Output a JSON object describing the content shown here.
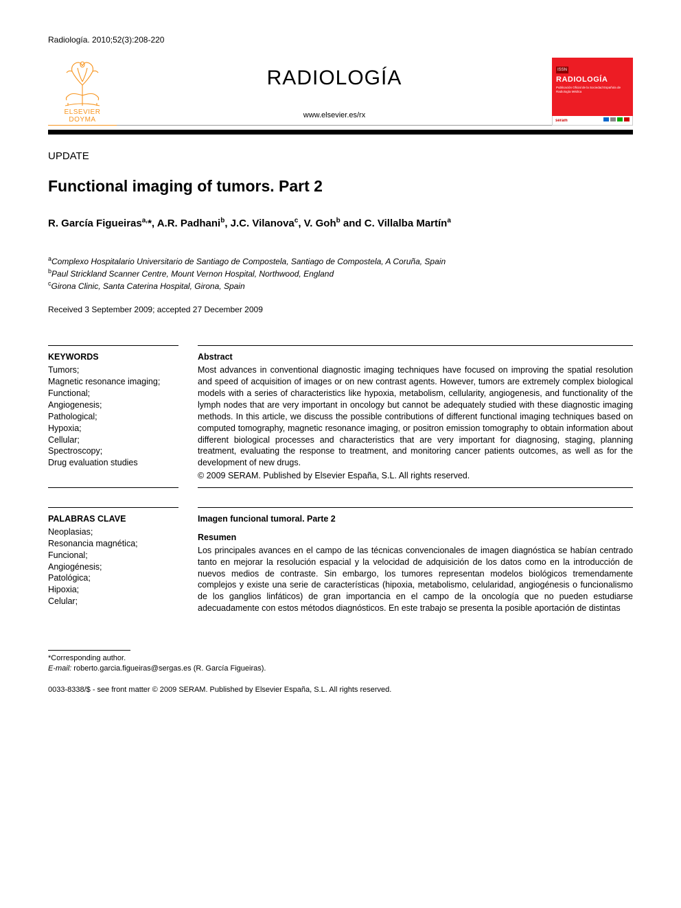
{
  "citation": "Radiología. 2010;52(3):208-220",
  "publisher_logo": {
    "line1": "ELSEVIER",
    "line2": "DOYMA",
    "color": "#f7941e"
  },
  "journal": {
    "name": "RADIOLOGÍA",
    "url": "www.elsevier.es/rx"
  },
  "cover": {
    "badge": "ISSN",
    "title": "RADIOLOGÍA",
    "subtitle": "Publicación Oficial de la Sociedad Española de Radiología Médica",
    "seram": "seram",
    "bg_color": "#ed1c24"
  },
  "section_label": "UPDATE",
  "article_title": "Functional imaging of tumors. Part 2",
  "authors_html": "R. García Figueiras<sup>a,</sup>*, A.R. Padhani<sup>b</sup>, J.C. Vilanova<sup>c</sup>, V. Goh<sup>b</sup> and C. Villalba Martín<sup>a</sup>",
  "affiliations": [
    {
      "sup": "a",
      "text": "Complexo Hospitalario Universitario de Santiago de Compostela, Santiago de Compostela, A Coruña, Spain"
    },
    {
      "sup": "b",
      "text": "Paul Strickland Scanner Centre, Mount Vernon Hospital, Northwood, England"
    },
    {
      "sup": "c",
      "text": "Girona Clinic, Santa Caterina Hospital, Girona, Spain"
    }
  ],
  "received": "Received 3 September 2009; accepted 27 December 2009",
  "keywords_en": {
    "heading": "KEYWORDS",
    "items": "Tumors;\nMagnetic resonance imaging;\nFunctional;\nAngiogenesis;\nPathological;\nHypoxia;\nCellular;\nSpectroscopy;\nDrug evaluation studies"
  },
  "abstract_en": {
    "heading": "Abstract",
    "body": "Most advances in conventional diagnostic imaging techniques have focused on improving the spatial resolution and speed of acquisition of images or on new contrast agents. However, tumors are extremely complex biological models with a series of characteristics like hypoxia, metabolism, cellularity, angiogenesis, and functionality of the lymph nodes that are very important in oncology but cannot be adequately studied with these diagnostic imaging methods. In this article, we discuss the possible contributions of different functional imaging techniques based on computed tomography, magnetic resonance imaging, or positron emission tomography to obtain information about different biological processes and characteristics that are very important for diagnosing, staging, planning treatment, evaluating the response to treatment, and monitoring cancer patients outcomes, as well as for the development of new drugs.",
    "copyright": "© 2009 SERAM. Published by Elsevier España, S.L. All rights reserved."
  },
  "keywords_es": {
    "heading": "PALABRAS CLAVE",
    "items": "Neoplasias;\nResonancia magnética;\nFuncional;\nAngiogénesis;\nPatológica;\nHipoxia;\nCelular;"
  },
  "abstract_es": {
    "title": "Imagen funcional tumoral. Parte 2",
    "heading": "Resumen",
    "body": "Los principales avances en el campo de las técnicas convencionales de imagen diagnóstica se habían centrado tanto en mejorar la resolución espacial y la velocidad de adquisición de los datos como en la introducción de nuevos medios de contraste. Sin embargo, los tumores representan modelos biológicos tremendamente complejos y existe una serie de características (hipoxia, metabolismo, celularidad, angiogénesis o funcionalismo de los ganglios linfáticos) de gran importancia en el campo de la oncología que no pueden estudiarse adecuadamente con estos métodos diagnósticos. En este trabajo se presenta la posible aportación de distintas"
  },
  "footnote": {
    "corresponding": "*Corresponding author.",
    "email_label": "E-mail:",
    "email": "roberto.garcia.figueiras@sergas.es (R. García Figueiras)."
  },
  "front_matter": "0033-8338/$ - see front matter © 2009 SERAM. Published by Elsevier España, S.L. All rights reserved."
}
